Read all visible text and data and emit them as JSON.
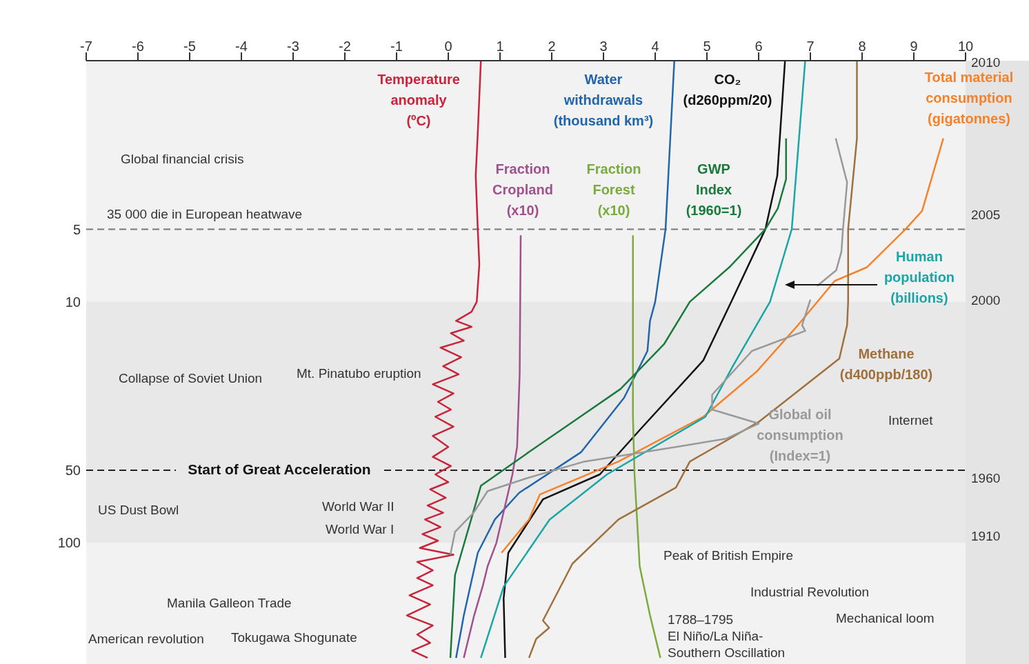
{
  "chart_data": {
    "type": "line",
    "xlim": [
      -7,
      10
    ],
    "xticks": [
      -7,
      -6,
      -5,
      -4,
      -3,
      -2,
      -1,
      0,
      1,
      2,
      3,
      4,
      5,
      6,
      7,
      8,
      9,
      10
    ],
    "ylim": [
      318,
      1
    ],
    "yticks": [
      5,
      10,
      50,
      100
    ],
    "log": "y",
    "marker": "none",
    "line_style": "solid",
    "series": [
      {
        "name": "Temperature\nanomaly\n(ºC)",
        "color": "#c8243a",
        "x": [
          0.63,
          0.57,
          0.53,
          0.57,
          0.6,
          0.55,
          0.45,
          0.15,
          0.45,
          0.05,
          0.3,
          -0.15,
          0.25,
          -0.1,
          0.2,
          -0.3,
          0.1,
          -0.2,
          0.05,
          -0.25,
          0.1,
          -0.3,
          0.0,
          -0.3,
          0.05,
          -0.25,
          0.0,
          -0.35,
          -0.05,
          -0.4,
          -0.1,
          -0.45,
          -0.15,
          -0.5,
          -0.2,
          -0.55,
          0.1,
          -0.6,
          -0.3,
          -0.6,
          -0.3,
          -0.75,
          -0.35,
          -0.8,
          -0.3,
          -0.6,
          -0.35,
          -0.7,
          -0.4
        ],
        "values": [
          1,
          2,
          3,
          5,
          7,
          10,
          11,
          12,
          12.7,
          13.5,
          14.5,
          15.5,
          17,
          18.5,
          20,
          22,
          24,
          26,
          28,
          30,
          33,
          36,
          40,
          44,
          48,
          52,
          56,
          60,
          65,
          70,
          75,
          80,
          86,
          92,
          98,
          105,
          112,
          120,
          130,
          140,
          150,
          165,
          180,
          200,
          220,
          240,
          260,
          280,
          300
        ]
      },
      {
        "name": "Water\nwithdrawals\n(thousand km³)",
        "color": "#2166ac",
        "x": [
          4.37,
          4.2,
          4.0,
          3.9,
          3.85,
          3.4,
          2.57,
          1.37,
          0.9,
          0.57,
          0.3,
          0.15
        ],
        "values": [
          1,
          5,
          10,
          12,
          16,
          25,
          42,
          62,
          80,
          110,
          200,
          300
        ]
      },
      {
        "name": "CO₂\n(d260ppm/20)",
        "color": "#111111",
        "x": [
          6.51,
          6.36,
          6.13,
          5.47,
          4.93,
          3.73,
          2.93,
          1.83,
          1.16,
          1.07,
          1.1
        ],
        "values": [
          1,
          3,
          5,
          10,
          17.5,
          33.5,
          52,
          66,
          110,
          170,
          300
        ]
      },
      {
        "name": "Total material\nconsumption\n(gigatonnes)",
        "color": "#f5822a",
        "x": [
          9.57,
          9.16,
          8.84,
          8.09,
          7.47,
          6.76,
          5.96,
          4.93,
          3.29,
          1.77,
          1.56,
          1.03
        ],
        "values": [
          2.1,
          4.2,
          5,
          7.2,
          8.2,
          12.5,
          19.5,
          30,
          46,
          63,
          80,
          110
        ]
      },
      {
        "name": "Fraction\nCropland\n(x10)",
        "color": "#a0508c",
        "x": [
          1.4,
          1.38,
          1.33,
          1.24,
          0.93,
          0.76,
          0.67,
          0.5,
          0.3
        ],
        "values": [
          5.3,
          20,
          40,
          52,
          100,
          125,
          150,
          200,
          300
        ]
      },
      {
        "name": "Fraction\nForest\n(x10)",
        "color": "#7aab3c",
        "x": [
          3.57,
          3.57,
          3.6,
          3.7,
          3.9,
          4.1
        ],
        "values": [
          5.3,
          30,
          52,
          125,
          200,
          300
        ]
      },
      {
        "name": "GWP\nIndex\n(1960=1)",
        "color": "#1a7a3c",
        "x": [
          6.53,
          6.53,
          6.37,
          6.13,
          5.43,
          4.67,
          4.17,
          3.33,
          2.36,
          1.56,
          0.63,
          0.13,
          0.04
        ],
        "values": [
          2.1,
          3.1,
          4.1,
          5,
          7.2,
          10,
          15,
          23,
          32,
          42,
          58,
          136,
          300
        ]
      },
      {
        "name": "Human\npopulation\n(billions)",
        "color": "#1aa6a6",
        "x": [
          6.9,
          6.64,
          6.22,
          5.5,
          4.97,
          3.07,
          1.96,
          1.07,
          0.63
        ],
        "values": [
          1,
          5,
          10,
          18.5,
          30,
          52,
          80,
          152,
          300
        ]
      },
      {
        "name": "Methane\n(d400ppb/180)",
        "color": "#a0703c",
        "x": [
          7.9,
          7.9,
          7.73,
          7.73,
          7.71,
          7.56,
          6.0,
          4.67,
          4.4,
          3.29,
          2.4,
          1.83,
          1.95,
          1.7,
          1.56
        ],
        "values": [
          1,
          2.1,
          5,
          10,
          12.5,
          17.2,
          31.5,
          46,
          59,
          80,
          122,
          210,
          225,
          250,
          300
        ]
      },
      {
        "name": "Global oil\nconsumption\n(Index=1)",
        "color": "#999999",
        "x": [
          7.49,
          7.71,
          7.63,
          7.6,
          7.5,
          7.13,
          null,
          7.0,
          6.84,
          6.9,
          5.87,
          5.1,
          5.1,
          6.0,
          5.37,
          4.4,
          2.63,
          1.51,
          0.76,
          0.49,
          0.13,
          0.04
        ],
        "values": [
          2.1,
          3.2,
          5,
          6.2,
          7.4,
          8.6,
          null,
          9.8,
          12.5,
          13.2,
          16,
          24.3,
          28,
          32,
          37,
          40,
          46,
          54,
          61,
          75,
          90,
          112
        ]
      }
    ],
    "bands": [
      {
        "axis": "y",
        "from": 10,
        "to": 100,
        "color": "#e8e8e8"
      }
    ],
    "ref_lines": [
      {
        "axis": "y",
        "value": 5,
        "label": "35 000 die in European heatwave",
        "color": "#777777",
        "line_style": "dashed"
      },
      {
        "axis": "y",
        "value": 50,
        "label": "Start of Great Acceleration",
        "color": "#222222",
        "line_style": "dashed"
      }
    ],
    "annotations": [
      "Global financial crisis",
      "Collapse of Soviet Union",
      "Mt. Pinatubo eruption",
      "Internet",
      "US Dust Bowl",
      "World War II",
      "World War I",
      "Peak of British Empire",
      "Industrial Revolution",
      "Manila Galleon Trade",
      "Mechanical loom",
      "1788–1795\nEl Niño/La Niña-\nSouthern Oscillation",
      "Tokugawa Shogunate",
      "American revolution",
      "2010",
      "2005",
      "2000",
      "1960",
      "1910"
    ]
  }
}
